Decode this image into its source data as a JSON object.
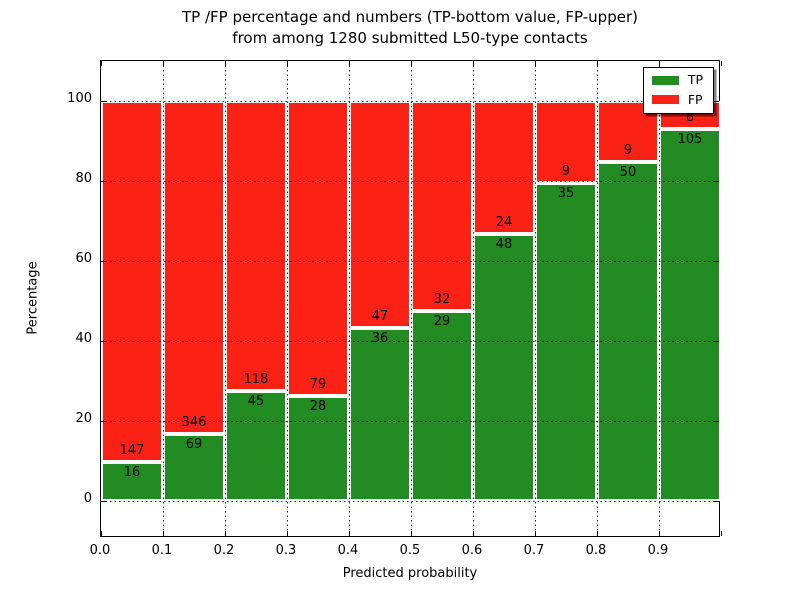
{
  "title": {
    "line1": "TP /FP percentage and numbers (TP-bottom value, FP-upper)",
    "line2": "from among 1280 submitted L50-type contacts"
  },
  "axes": {
    "x_label": "Predicted probability",
    "y_label": "Percentage",
    "x_ticks": [
      "0.0",
      "0.1",
      "0.2",
      "0.3",
      "0.4",
      "0.5",
      "0.6",
      "0.7",
      "0.8",
      "0.9"
    ],
    "y_ticks": [
      "0",
      "20",
      "40",
      "60",
      "80",
      "100"
    ]
  },
  "legend": {
    "items": [
      {
        "label": "TP",
        "color_key": "tp"
      },
      {
        "label": "FP",
        "color_key": "fp"
      }
    ]
  },
  "colors": {
    "tp": "#228b22",
    "fp": "#fb2114",
    "bar_edge": "#ffffff",
    "grid": "#000000",
    "frame": "#000000"
  },
  "chart_data": {
    "type": "bar",
    "stacked": true,
    "normalized": "each bar scaled to 100 percent; printed numbers are raw counts",
    "title": "TP /FP percentage and numbers (TP-bottom value, FP-upper) from among 1280 submitted L50-type contacts",
    "xlabel": "Predicted probability",
    "ylabel": "Percentage",
    "bin_edges": [
      0.0,
      0.1,
      0.2,
      0.3,
      0.4,
      0.5,
      0.6,
      0.7,
      0.8,
      0.9,
      1.0
    ],
    "categories": [
      "0.0-0.1",
      "0.1-0.2",
      "0.2-0.3",
      "0.3-0.4",
      "0.4-0.5",
      "0.5-0.6",
      "0.6-0.7",
      "0.7-0.8",
      "0.8-0.9",
      "0.9-1.0"
    ],
    "series": [
      {
        "name": "TP",
        "counts": [
          16,
          69,
          45,
          28,
          36,
          29,
          48,
          35,
          50,
          105
        ]
      },
      {
        "name": "FP",
        "counts": [
          147,
          346,
          118,
          79,
          47,
          32,
          24,
          9,
          9,
          8
        ]
      }
    ],
    "tp_percent": [
      9.8,
      16.6,
      27.6,
      26.2,
      43.4,
      47.5,
      66.7,
      79.5,
      84.7,
      92.9
    ],
    "total_contacts": 1280,
    "xlim": [
      0.0,
      1.0
    ],
    "ylim": [
      -10,
      110
    ],
    "grid": "dotted black; vertical every 0.1, horizontal every 20",
    "legend_position": "upper right"
  }
}
